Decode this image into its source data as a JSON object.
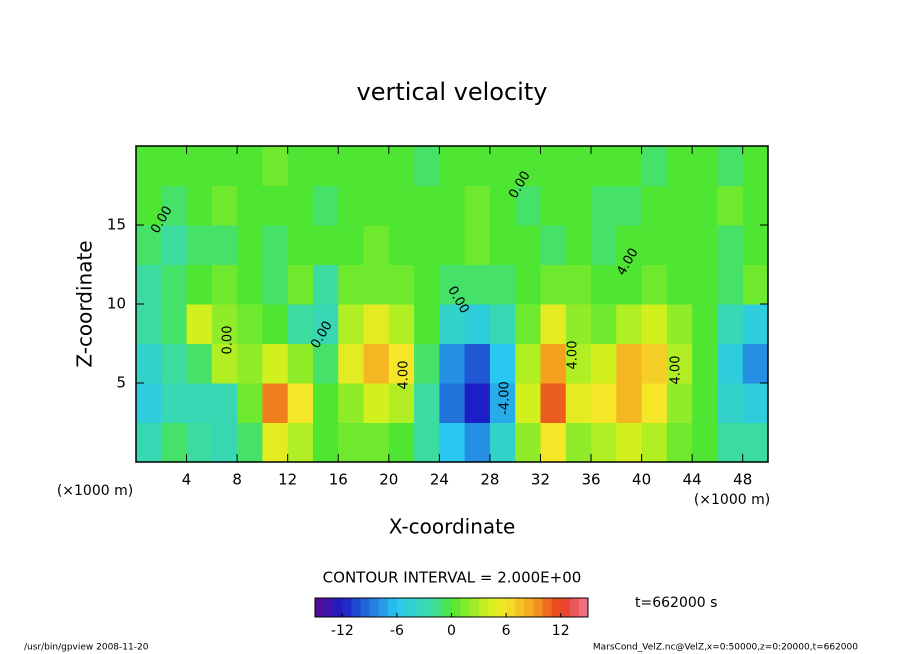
{
  "chart_data": {
    "type": "contour",
    "title": "vertical velocity",
    "xlabel": "X-coordinate",
    "ylabel": "Z-coordinate",
    "x_unit_label": "(×1000 m)",
    "x_unit_label_right": "(×1000 m)",
    "xlim": [
      0,
      50
    ],
    "ylim": [
      0,
      20
    ],
    "xticks": [
      4,
      8,
      12,
      16,
      20,
      24,
      28,
      32,
      36,
      40,
      44,
      48
    ],
    "yticks": [
      5,
      10,
      15
    ],
    "x": [
      1,
      3,
      5,
      7,
      9,
      11,
      13,
      15,
      17,
      19,
      21,
      23,
      25,
      27,
      29,
      31,
      33,
      35,
      37,
      39,
      41,
      43,
      45,
      47,
      49
    ],
    "y": [
      1.25,
      3.75,
      6.25,
      8.75,
      11.25,
      13.75,
      16.25,
      18.75
    ],
    "z": [
      [
        -3,
        -1,
        -2,
        -3,
        -1,
        5,
        3,
        0,
        1,
        1,
        0,
        -2,
        -6,
        -8,
        -4,
        2,
        6,
        2,
        3,
        4,
        3,
        1,
        0,
        -2,
        -2
      ],
      [
        -5,
        -3,
        -3,
        -3,
        1,
        10,
        6,
        0,
        2,
        4,
        3,
        -2,
        -9,
        -12,
        -7,
        4,
        11,
        5,
        6,
        8,
        6,
        2,
        0,
        -4,
        -5
      ],
      [
        -4,
        -2,
        -1,
        3,
        2,
        4,
        2,
        -1,
        5,
        8,
        6,
        -1,
        -8,
        -10,
        -6,
        3,
        9,
        3,
        4,
        8,
        7,
        3,
        0,
        -5,
        -8
      ],
      [
        -2,
        -1,
        4,
        2,
        1,
        0,
        -2,
        -3,
        3,
        5,
        3,
        0,
        -4,
        -5,
        -3,
        1,
        5,
        2,
        1,
        3,
        4,
        2,
        0,
        -3,
        -5
      ],
      [
        -2,
        -1,
        0,
        1,
        0,
        -1,
        1,
        -2,
        1,
        1,
        1,
        0,
        -1,
        -1,
        -1,
        0,
        1,
        1,
        0,
        0,
        1,
        0,
        0,
        -1,
        1
      ],
      [
        -1,
        -2,
        -1,
        -1,
        0,
        -1,
        0,
        0,
        0,
        1,
        0,
        0,
        0,
        1,
        0,
        0,
        -1,
        0,
        -1,
        0,
        0,
        0,
        0,
        -1,
        0
      ],
      [
        0,
        -1,
        0,
        1,
        0,
        0,
        0,
        -1,
        0,
        0,
        0,
        0,
        0,
        1,
        0,
        -1,
        0,
        0,
        -1,
        -1,
        0,
        0,
        0,
        1,
        0
      ],
      [
        0,
        0,
        0,
        0,
        0,
        1,
        0,
        0,
        0,
        0,
        0,
        -1,
        0,
        0,
        0,
        0,
        0,
        0,
        0,
        0,
        -1,
        0,
        0,
        -1,
        0
      ]
    ],
    "contour_labels": [
      "0.00",
      "0.00",
      "0.00",
      "0.00",
      "0.00",
      "4.00",
      "4.00",
      "-4.00",
      "4.00",
      "4.00"
    ],
    "contour_interval": "CONTOUR INTERVAL = 2.000E+00",
    "time_label": "t=662000 s",
    "clim": [
      -15,
      15
    ],
    "cticks": [
      -12,
      -6,
      0,
      6,
      12
    ],
    "colormap": [
      {
        "value": -15,
        "color": "#5a0a8c"
      },
      {
        "value": -12,
        "color": "#1e1ec8"
      },
      {
        "value": -6,
        "color": "#28c8f0"
      },
      {
        "value": -2,
        "color": "#3cdca0"
      },
      {
        "value": 0,
        "color": "#4ee632"
      },
      {
        "value": 4,
        "color": "#d2f01e"
      },
      {
        "value": 6,
        "color": "#f5e628"
      },
      {
        "value": 9,
        "color": "#f5a01e"
      },
      {
        "value": 12,
        "color": "#e63c1e"
      },
      {
        "value": 15,
        "color": "#f07896"
      }
    ],
    "footer_left": "/usr/bin/gpview  2008-11-20",
    "footer_right": "MarsCond_VelZ.nc@VelZ,x=0:50000,z=0:20000,t=662000"
  }
}
